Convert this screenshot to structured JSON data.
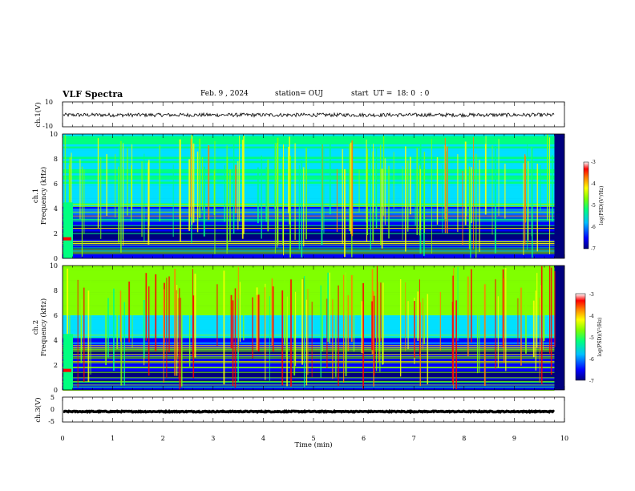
{
  "header": {
    "title": "VLF Spectra",
    "date": "Feb. 9 , 2024",
    "station": "station= OUJ",
    "start": "start  UT =  18: 0  : 0"
  },
  "colors": {
    "background": "#ffffff",
    "trace": "#000000",
    "colormap": [
      "#00007f",
      "#0000ff",
      "#0080ff",
      "#00e0ff",
      "#00ff80",
      "#80ff00",
      "#ffff00",
      "#ff8000",
      "#ff0000",
      "#ffffff"
    ]
  },
  "chart_data": [
    {
      "id": "ch1-waveform",
      "type": "line",
      "ylabel": "ch.1(V)",
      "ylim": [
        -10,
        10
      ],
      "yticks": [
        "10",
        "-10"
      ],
      "series": [
        {
          "name": "ch.1",
          "mean": -0.5,
          "amplitude": 1.5
        }
      ],
      "xlim": [
        0,
        10
      ]
    },
    {
      "id": "ch1-spectrogram",
      "type": "heatmap",
      "ylabel_line1": "ch.1",
      "ylabel_line2": "Frequency (kHz)",
      "ylim": [
        0,
        10
      ],
      "yticks": [
        "0",
        "2",
        "4",
        "6",
        "8",
        "10"
      ],
      "xlim": [
        0,
        10
      ],
      "data_end_minute": 9.8,
      "colorbar": {
        "label": "log(PSD)(V²/Hz)",
        "range": [
          -7,
          -3
        ],
        "ticks": [
          "-3",
          "-4",
          "-5",
          "-6",
          "-7"
        ]
      }
    },
    {
      "id": "ch2-spectrogram",
      "type": "heatmap",
      "ylabel_line1": "ch.2",
      "ylabel_line2": "Frequency (kHz)",
      "ylim": [
        0,
        10
      ],
      "yticks": [
        "0",
        "2",
        "4",
        "6",
        "8",
        "10"
      ],
      "xlim": [
        0,
        10
      ],
      "data_end_minute": 9.8,
      "colorbar": {
        "label": "log(PSD)(V²/Hz)",
        "range": [
          -7,
          -3
        ],
        "ticks": [
          "-3",
          "-4",
          "-5",
          "-6",
          "-7"
        ]
      }
    },
    {
      "id": "ch3-waveform",
      "type": "line",
      "ylabel": "ch.3(V)",
      "ylim": [
        -5,
        5
      ],
      "yticks": [
        "5",
        "0",
        "-5"
      ],
      "series": [
        {
          "name": "ch.3",
          "mean": -0.8,
          "amplitude": 0.2
        }
      ],
      "xlim": [
        0,
        10
      ],
      "xlabel": "Time  (min)",
      "xticks": [
        "0",
        "1",
        "2",
        "3",
        "4",
        "5",
        "6",
        "7",
        "8",
        "9",
        "10"
      ]
    }
  ]
}
